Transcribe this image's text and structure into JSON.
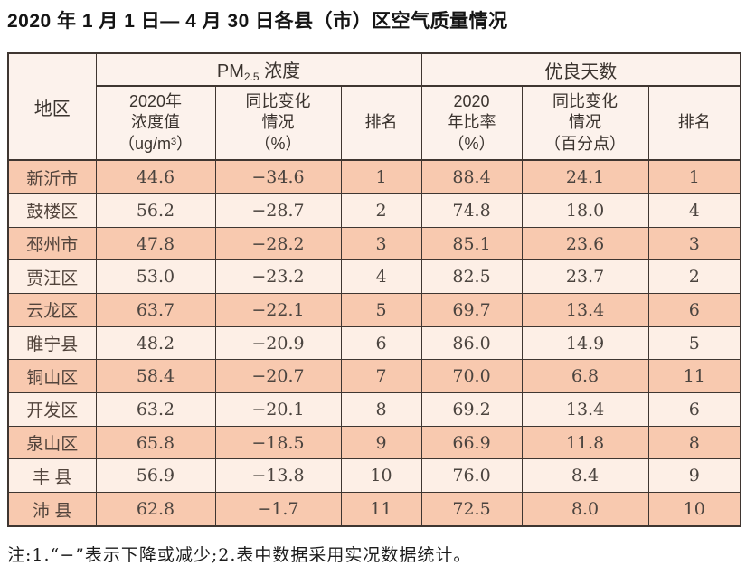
{
  "title": "2020 年 1 月 1 日— 4 月 30 日各县（市）区空气质量情况",
  "table": {
    "region_header": "地区",
    "pm_group": {
      "prefix": "PM",
      "sub": "2.5",
      "suffix": " 浓度"
    },
    "good_group_label": "优良天数",
    "sub_headers": [
      "2020年\n浓度值\n（ug/m³）",
      "同比变化\n情况\n（%）",
      "排名",
      "2020\n年比率\n（%）",
      "同比变化\n情况\n（百分点）",
      "排名"
    ],
    "rows": [
      {
        "region": "新沂市",
        "pm_value": "44.6",
        "pm_change": "−34.6",
        "pm_rank": "1",
        "good_rate": "88.4",
        "good_change": "24.1",
        "good_rank": "1"
      },
      {
        "region": "鼓楼区",
        "pm_value": "56.2",
        "pm_change": "−28.7",
        "pm_rank": "2",
        "good_rate": "74.8",
        "good_change": "18.0",
        "good_rank": "4"
      },
      {
        "region": "邳州市",
        "pm_value": "47.8",
        "pm_change": "−28.2",
        "pm_rank": "3",
        "good_rate": "85.1",
        "good_change": "23.6",
        "good_rank": "3"
      },
      {
        "region": "贾汪区",
        "pm_value": "53.0",
        "pm_change": "−23.2",
        "pm_rank": "4",
        "good_rate": "82.5",
        "good_change": "23.7",
        "good_rank": "2"
      },
      {
        "region": "云龙区",
        "pm_value": "63.7",
        "pm_change": "−22.1",
        "pm_rank": "5",
        "good_rate": "69.7",
        "good_change": "13.4",
        "good_rank": "6"
      },
      {
        "region": "睢宁县",
        "pm_value": "48.2",
        "pm_change": "−20.9",
        "pm_rank": "6",
        "good_rate": "86.0",
        "good_change": "14.9",
        "good_rank": "5"
      },
      {
        "region": "铜山区",
        "pm_value": "58.4",
        "pm_change": "−20.7",
        "pm_rank": "7",
        "good_rate": "70.0",
        "good_change": "6.8",
        "good_rank": "11"
      },
      {
        "region": "开发区",
        "pm_value": "63.2",
        "pm_change": "−20.1",
        "pm_rank": "8",
        "good_rate": "69.2",
        "good_change": "13.4",
        "good_rank": "6"
      },
      {
        "region": "泉山区",
        "pm_value": "65.8",
        "pm_change": "−18.5",
        "pm_rank": "9",
        "good_rate": "66.9",
        "good_change": "11.8",
        "good_rank": "8"
      },
      {
        "region": "丰 县",
        "pm_value": "56.9",
        "pm_change": "−13.8",
        "pm_rank": "10",
        "good_rate": "76.0",
        "good_change": "8.4",
        "good_rank": "9"
      },
      {
        "region": "沛 县",
        "pm_value": "62.8",
        "pm_change": "−1.7",
        "pm_rank": "11",
        "good_rate": "72.5",
        "good_change": "8.0",
        "good_rank": "10"
      }
    ]
  },
  "note": "注:1.“−”表示下降或减少;2.表中数据采用实况数据统计。",
  "colors": {
    "row_salmon": "#f8c9af",
    "row_light": "#fdefe6",
    "header_bg": "#fcf2ec",
    "border": "#3f3631",
    "title_text": "#141414",
    "cell_text": "#4b443f"
  }
}
